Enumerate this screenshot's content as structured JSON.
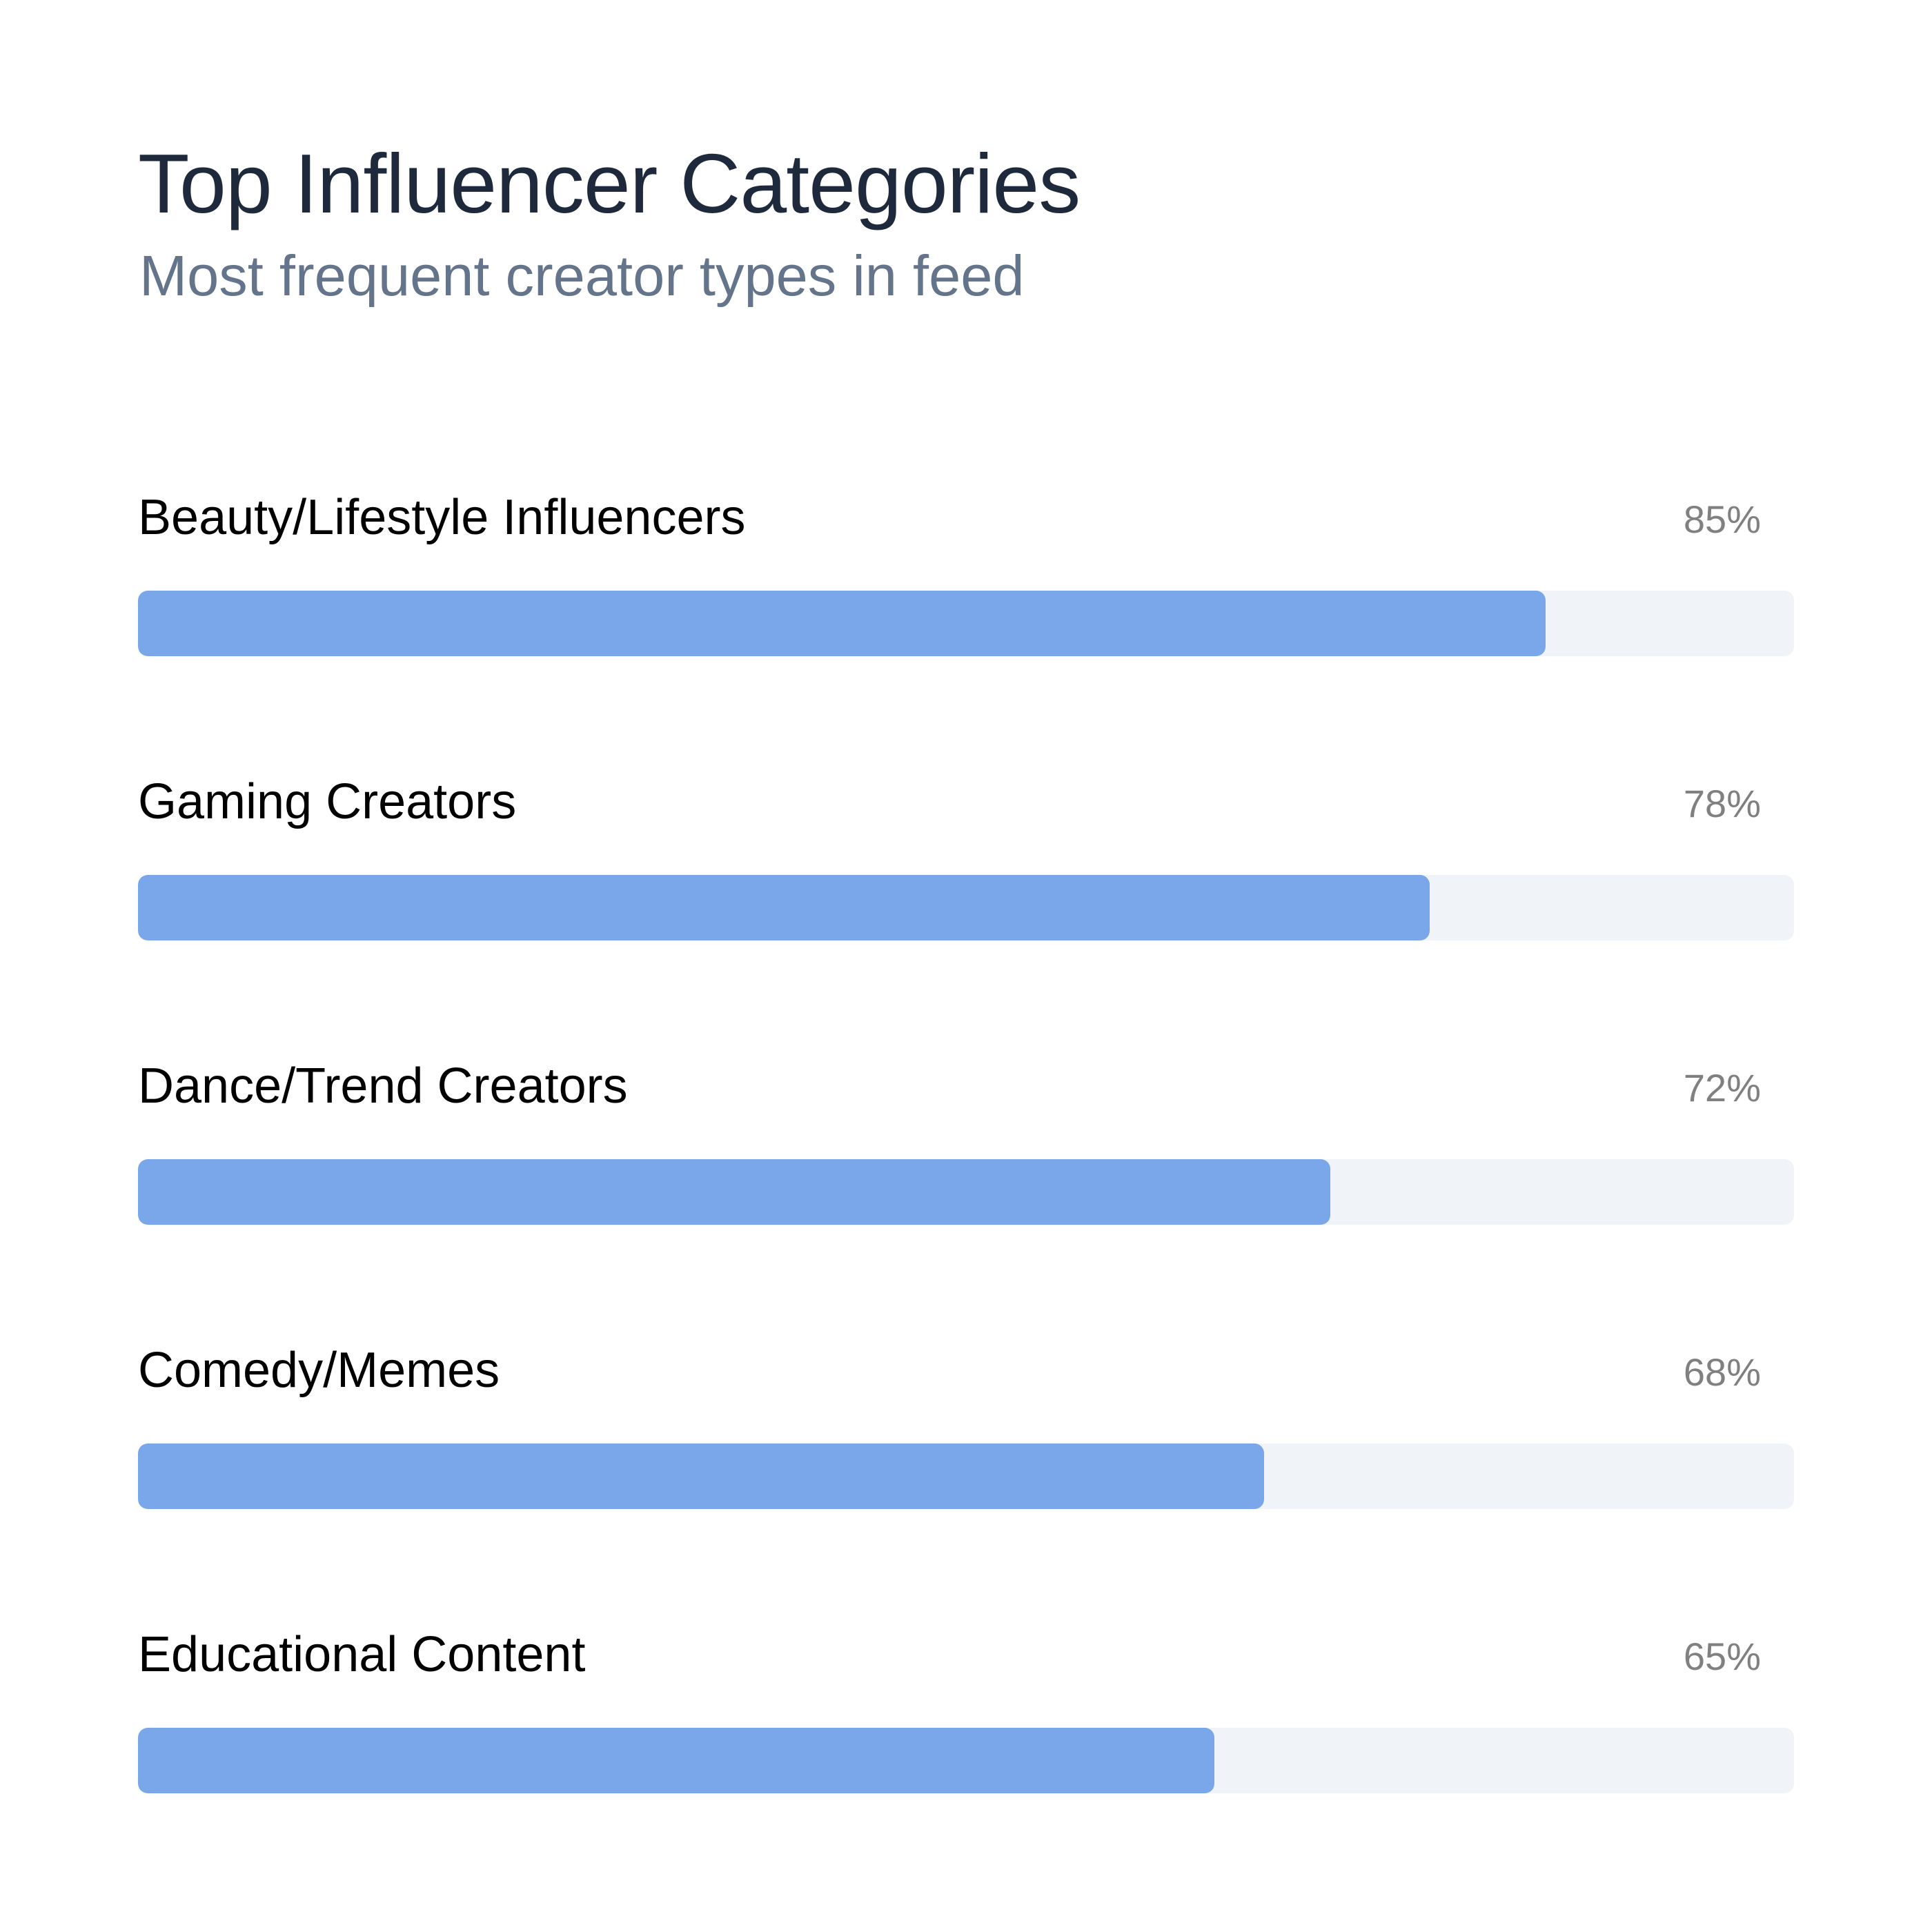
{
  "header": {
    "title": "Top Influencer Categories",
    "subtitle": "Most frequent creator types in feed"
  },
  "colors": {
    "bar_fill": "#7aa6ea",
    "bar_track": "#f0f3f8",
    "title": "#1e293b",
    "subtitle": "#64748b",
    "value_text": "#808080"
  },
  "rows": [
    {
      "label": "Beauty/Lifestyle Influencers",
      "value_text": "85%"
    },
    {
      "label": "Gaming Creators",
      "value_text": "78%"
    },
    {
      "label": "Dance/Trend Creators",
      "value_text": "72%"
    },
    {
      "label": "Comedy/Memes",
      "value_text": "68%"
    },
    {
      "label": "Educational Content",
      "value_text": "65%"
    }
  ],
  "chart_data": {
    "type": "bar",
    "orientation": "horizontal",
    "title": "Top Influencer Categories",
    "subtitle": "Most frequent creator types in feed",
    "categories": [
      "Beauty/Lifestyle Influencers",
      "Gaming Creators",
      "Dance/Trend Creators",
      "Comedy/Memes",
      "Educational Content"
    ],
    "values": [
      85,
      78,
      72,
      68,
      65
    ],
    "unit": "%",
    "xlim": [
      0,
      100
    ],
    "grid": false,
    "legend": "none"
  }
}
